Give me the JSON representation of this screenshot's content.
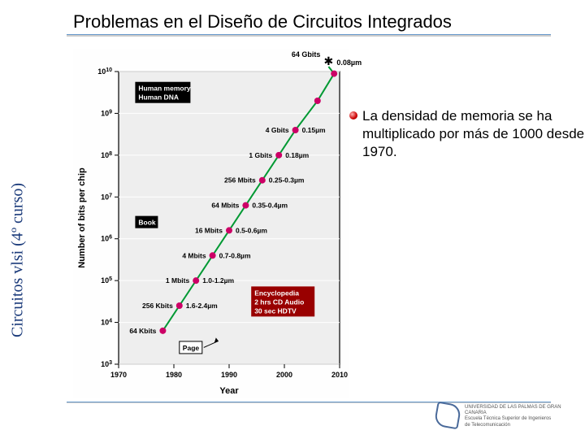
{
  "title": "Problemas en el Diseño de Circuitos Integrados",
  "side_label": "Circuitos vlsi (4º curso)",
  "bullet": {
    "text": "La densidad de memoria se ha multiplicado por más de 1000 desde 1970."
  },
  "footer": {
    "line1": "UNIVERSIDAD DE LAS PALMAS DE GRAN CANARIA",
    "line2": "Escuela Técnica Superior de Ingenieros",
    "line3": "de Telecomunicación"
  },
  "chart": {
    "type": "scatter-line-log",
    "background_color": "#fefefe",
    "plot_bg": "#eeeeee",
    "axis_color": "#000000",
    "grid_color": "#ffffff",
    "line_color": "#009933",
    "marker_color": "#cc0066",
    "marker_size": 4,
    "xlabel": "Year",
    "ylabel": "Number of bits per chip",
    "label_fontsize": 11,
    "tick_fontsize": 9,
    "xlim": [
      1970,
      2010
    ],
    "xtick_step": 10,
    "ylim_exp": [
      3,
      10
    ],
    "yticks_exp": [
      3,
      4,
      5,
      6,
      7,
      8,
      9,
      10
    ],
    "points": [
      {
        "year": 1978,
        "exp": 3.8,
        "label": "64 Kbits",
        "feat": ""
      },
      {
        "year": 1981,
        "exp": 4.4,
        "label": "256 Kbits",
        "feat": "1.6-2.4µm"
      },
      {
        "year": 1984,
        "exp": 5.0,
        "label": "1 Mbits",
        "feat": "1.0-1.2µm"
      },
      {
        "year": 1987,
        "exp": 5.6,
        "label": "4 Mbits",
        "feat": "0.7-0.8µm"
      },
      {
        "year": 1990,
        "exp": 6.2,
        "label": "16 Mbits",
        "feat": "0.5-0.6µm"
      },
      {
        "year": 1993,
        "exp": 6.8,
        "label": "64 Mbits",
        "feat": "0.35-0.4µm"
      },
      {
        "year": 1996,
        "exp": 7.4,
        "label": "256 Mbits",
        "feat": "0.25-0.3µm"
      },
      {
        "year": 1999,
        "exp": 8.0,
        "label": "1 Gbits",
        "feat": "0.18µm"
      },
      {
        "year": 2002,
        "exp": 8.6,
        "label": "4 Gbits",
        "feat": "0.15µm"
      },
      {
        "year": 2006,
        "exp": 9.3,
        "label": "",
        "feat": ""
      },
      {
        "year": 2009,
        "exp": 9.95,
        "label": "",
        "feat": ""
      }
    ],
    "top_marker": {
      "year": 2008,
      "exp": 10.5,
      "label_left": "",
      "label_top": "64 Gbits",
      "label_right": "0.08µm"
    },
    "boxes": [
      {
        "text": "Human memory\nHuman DNA",
        "x": 1973,
        "y_exp": 9.5,
        "bg": "#000000",
        "fg": "#ffffff"
      },
      {
        "text": "Book",
        "x": 1973,
        "y_exp": 6.4,
        "bg": "#000000",
        "fg": "#ffffff"
      },
      {
        "text": "Encyclopedia\n2 hrs CD Audio\n30 sec HDTV",
        "x": 1994,
        "y_exp": 4.5,
        "bg": "#990000",
        "fg": "#ffffff"
      },
      {
        "text": "Page",
        "x": 1981,
        "y_exp": 3.4,
        "bg": "#ffffff",
        "fg": "#000000"
      }
    ]
  }
}
